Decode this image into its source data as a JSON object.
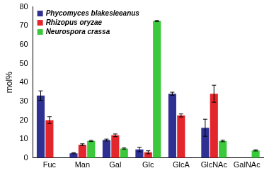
{
  "chart_data": {
    "type": "bar",
    "y_label": "mol%",
    "categories": [
      "Fuc",
      "Man",
      "Gal",
      "Glc",
      "GlcA",
      "GlcNAc",
      "GalNAc"
    ],
    "series": [
      {
        "name": "Phycomyces blakesleeanus",
        "color": "#2e3192",
        "values": [
          33,
          2.5,
          9.5,
          4.5,
          34,
          16,
          0
        ],
        "errors": [
          2.5,
          0.3,
          0.5,
          1.2,
          0.8,
          4.5,
          0
        ]
      },
      {
        "name": "Rhizopus oryzae",
        "color": "#e3262b",
        "values": [
          20,
          7,
          12,
          3,
          22.5,
          34,
          0
        ],
        "errors": [
          1.8,
          0.5,
          0.7,
          0.8,
          0.8,
          4.5,
          0
        ]
      },
      {
        "name": "Neurospora crassa",
        "color": "#3cc83c",
        "values": [
          0,
          9,
          5,
          72.5,
          0,
          9,
          4
        ],
        "errors": [
          0,
          0.3,
          0.3,
          0.3,
          0,
          0.4,
          0.3
        ]
      }
    ],
    "ylim": [
      0,
      80
    ],
    "yticks": [
      0,
      10,
      20,
      30,
      40,
      50,
      60,
      70,
      80
    ],
    "grid": false,
    "legend": "upper left"
  }
}
